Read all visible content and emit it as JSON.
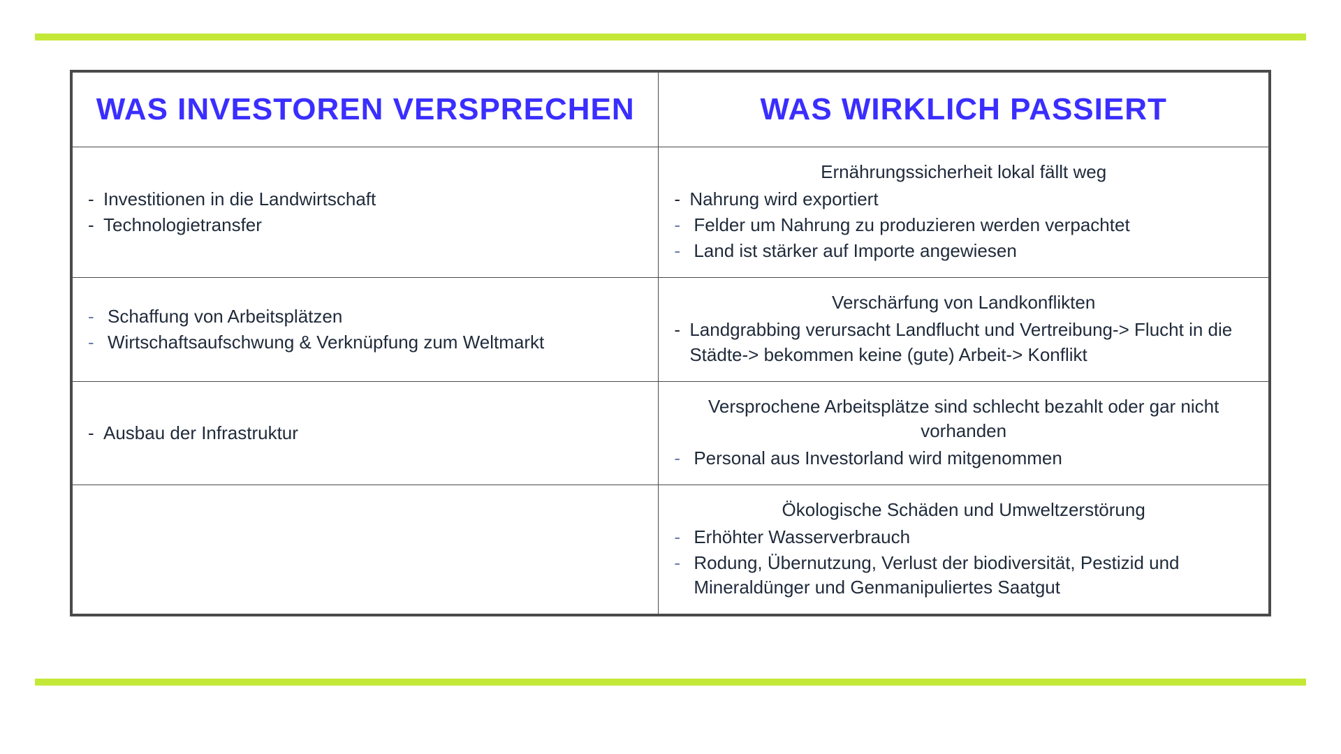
{
  "colors": {
    "stripe": "#c4e838",
    "header_text": "#3a2eff",
    "body_text": "#1f2a3a",
    "border": "#4a4a4a",
    "dash_alt": "#6a7aa8",
    "background": "#ffffff"
  },
  "typography": {
    "header_fontsize": 44,
    "body_fontsize": 26
  },
  "layout": {
    "col_left_pct": 49,
    "col_right_pct": 51
  },
  "table": {
    "headers": {
      "left": "WAS INVESTOREN VERSPRECHEN",
      "right": "WAS WIRKLICH PASSIERT"
    },
    "rows": [
      {
        "left": {
          "title": "",
          "bullets": [
            {
              "dash_color": "body",
              "text": "Investitionen in die Landwirtschaft"
            },
            {
              "dash_color": "body",
              "text": "Technologietransfer"
            }
          ]
        },
        "right": {
          "title": "Ernährungssicherheit lokal fällt weg",
          "bullets": [
            {
              "dash_color": "body",
              "text": "Nahrung wird exportiert"
            },
            {
              "dash_color": "alt",
              "indent": true,
              "text": "Felder um Nahrung zu produzieren werden verpachtet"
            },
            {
              "dash_color": "alt",
              "indent": true,
              "text": "Land ist stärker auf Importe angewiesen"
            }
          ]
        }
      },
      {
        "left": {
          "title": "",
          "bullets": [
            {
              "dash_color": "alt",
              "indent": true,
              "text": "Schaffung von Arbeitsplätzen"
            },
            {
              "dash_color": "alt",
              "indent": true,
              "text": "Wirtschaftsaufschwung & Verknüpfung zum Weltmarkt"
            }
          ]
        },
        "right": {
          "title": "Verschärfung von Landkonflikten",
          "bullets": [
            {
              "dash_color": "body",
              "text": "Landgrabbing verursacht Landflucht und Vertreibung-> Flucht in die Städte-> bekommen keine (gute) Arbeit-> Konflikt"
            }
          ]
        }
      },
      {
        "left": {
          "title": "",
          "bullets": [
            {
              "dash_color": "body",
              "text": "Ausbau der Infrastruktur"
            }
          ]
        },
        "right": {
          "title": "Versprochene Arbeitsplätze sind schlecht bezahlt oder gar nicht vorhanden",
          "bullets": [
            {
              "dash_color": "alt",
              "indent": true,
              "text": "Personal aus Investorland wird mitgenommen"
            }
          ]
        }
      },
      {
        "left": {
          "title": "",
          "bullets": []
        },
        "right": {
          "title": "Ökologische Schäden und Umweltzerstörung",
          "bullets": [
            {
              "dash_color": "alt",
              "indent": true,
              "text": "Erhöhter Wasserverbrauch"
            },
            {
              "dash_color": "alt",
              "indent": true,
              "text": "Rodung, Übernutzung, Verlust der biodiversität, Pestizid und Mineraldünger und Genmanipuliertes Saatgut"
            }
          ]
        }
      }
    ]
  }
}
